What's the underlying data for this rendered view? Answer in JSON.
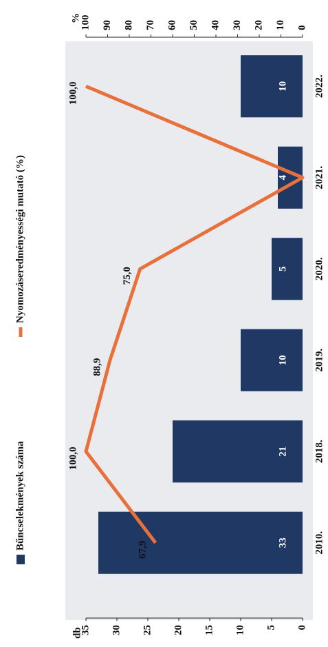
{
  "chart_data": {
    "type": "bar_line",
    "categories": [
      "2010.",
      "2018.",
      "2019.",
      "2020.",
      "2021.",
      "2022."
    ],
    "series": [
      {
        "name": "Bűncselekmények száma",
        "type": "bar",
        "color": "#1f3864",
        "values": [
          33,
          21,
          10,
          5,
          4,
          10
        ]
      },
      {
        "name": "Nyomozáseredményességi mutató (%)",
        "type": "line",
        "axis": "y2",
        "color": "#e8703a",
        "values": [
          67.9,
          100,
          88.9,
          75,
          0,
          100
        ],
        "value_labels": [
          "67,9",
          "100,0",
          "88,9",
          "75,0",
          null,
          "100,0"
        ]
      }
    ],
    "ylabel": "db",
    "y2label": "%",
    "ylim": [
      0,
      35
    ],
    "yticks": [
      0,
      5,
      10,
      15,
      20,
      25,
      30,
      35
    ],
    "y2lim": [
      0,
      100
    ],
    "y2ticks": [
      0,
      10,
      20,
      30,
      40,
      50,
      60,
      70,
      80,
      90,
      100
    ]
  }
}
